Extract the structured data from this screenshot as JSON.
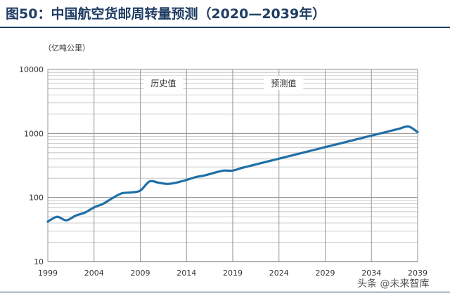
{
  "figure": {
    "title": "图50：中国航空货邮周转量预测（2020—2039年）",
    "unit": "（亿吨公里）",
    "watermark": "头条 @未来智库"
  },
  "chart_data": {
    "type": "line",
    "scale_y": "log",
    "title": "图50：中国航空货邮周转量预测（2020—2039年）",
    "ylabel": "（亿吨公里）",
    "xlim": [
      1999,
      2039
    ],
    "ylim": [
      10,
      10000
    ],
    "x_ticks": [
      1999,
      2004,
      2009,
      2014,
      2019,
      2024,
      2029,
      2034,
      2039
    ],
    "y_ticks": [
      10,
      100,
      1000,
      10000
    ],
    "grid": true,
    "line_color": "#1f6fa8",
    "annotations": [
      {
        "text": "历史值",
        "x": 2011.5,
        "y": 6200
      },
      {
        "text": "预测值",
        "x": 2024.5,
        "y": 6200
      }
    ],
    "divider_x": 2019,
    "series": [
      {
        "name": "",
        "x": [
          1999,
          2000,
          2001,
          2002,
          2003,
          2004,
          2005,
          2006,
          2007,
          2008,
          2009,
          2010,
          2011,
          2012,
          2013,
          2014,
          2015,
          2016,
          2017,
          2018,
          2019,
          2020,
          2021,
          2022,
          2023,
          2024,
          2025,
          2026,
          2027,
          2028,
          2029,
          2030,
          2031,
          2032,
          2033,
          2034,
          2035,
          2036,
          2037,
          2038,
          2039
        ],
        "y": [
          42,
          50,
          44,
          52,
          58,
          70,
          80,
          98,
          116,
          120,
          128,
          178,
          170,
          163,
          172,
          188,
          208,
          222,
          243,
          263,
          263,
          290,
          315,
          343,
          372,
          404,
          439,
          477,
          518,
          563,
          612,
          665,
          721,
          784,
          851,
          925,
          1004,
          1091,
          1185,
          1287,
          1050
        ]
      }
    ]
  }
}
